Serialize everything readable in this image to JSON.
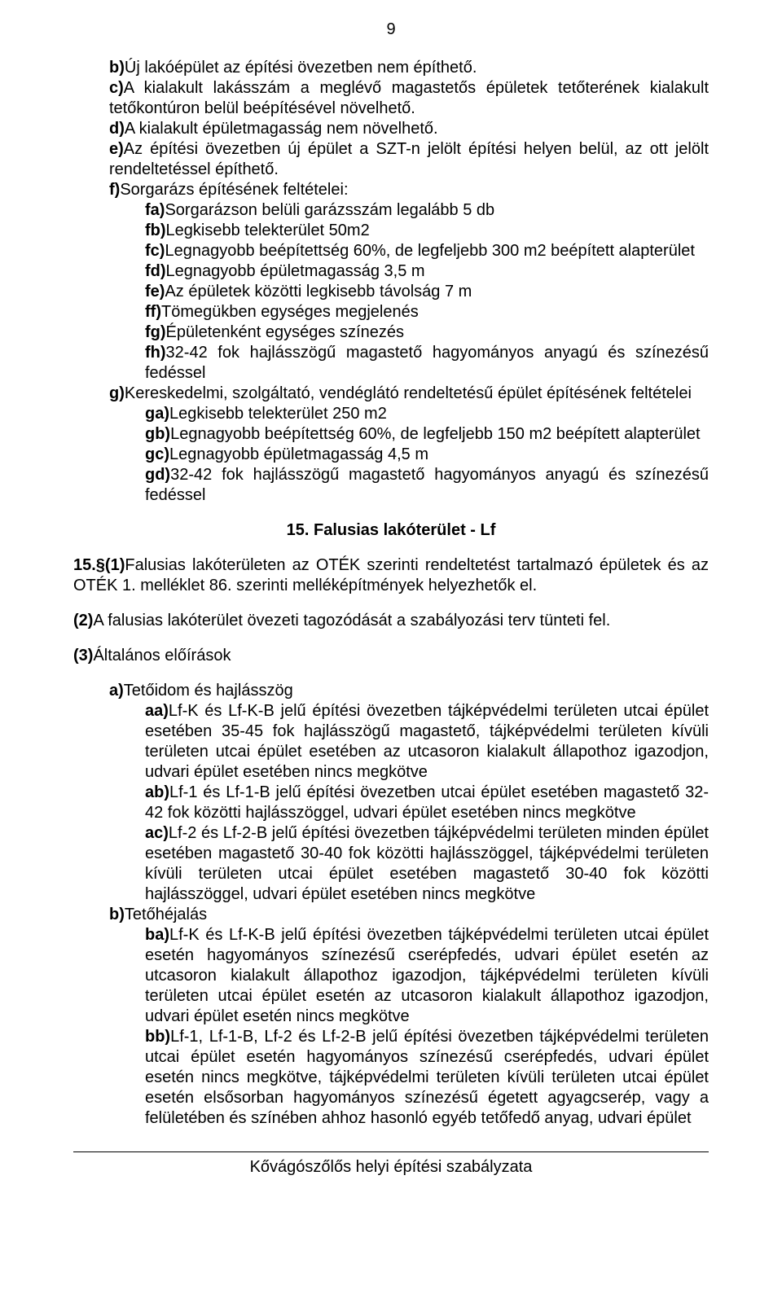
{
  "page_number": "9",
  "lines": {
    "b": "Új lakóépület az építési övezetben nem építhető.",
    "c": "A kialakult lakásszám a meglévő magastetős épületek tetőterének kialakult tetőkontúron belül beépítésével növelhető.",
    "d": "A kialakult épületmagasság nem növelhető.",
    "e": "Az építési övezetben új épület a SZT-n jelölt építési helyen belül, az ott jelölt rendeltetéssel építhető.",
    "f": "Sorgarázs építésének feltételei:",
    "fa": "Sorgarázson belüli garázsszám legalább 5 db",
    "fb": "Legkisebb telekterület 50m2",
    "fc": "Legnagyobb beépítettség 60%, de legfeljebb 300 m2 beépített alapterület",
    "fd": "Legnagyobb épületmagasság 3,5 m",
    "fe": "Az épületek közötti legkisebb távolság 7 m",
    "ff": "Tömegükben egységes megjelenés",
    "fg": "Épületenként egységes színezés",
    "fh": "32-42 fok hajlásszögű magastető hagyományos anyagú és színezésű fedéssel",
    "g": "Kereskedelmi, szolgáltató, vendéglátó rendeltetésű épület építésének feltételei",
    "ga": "Legkisebb telekterület 250 m2",
    "gb": "Legnagyobb beépítettség 60%, de legfeljebb 150 m2 beépített alapterület",
    "gc": "Legnagyobb épületmagasság 4,5 m",
    "gd": "32-42 fok hajlásszögű magastető hagyományos anyagú és színezésű fedéssel"
  },
  "section_title": "15. Falusias lakóterület - Lf",
  "p15_1": "Falusias lakóterületen az OTÉK szerinti rendeltetést tartalmazó épületek és az OTÉK 1. melléklet 86. szerinti melléképítmények helyezhetők el.",
  "p15_2": "A falusias lakóterület övezeti tagozódását a szabályozási terv tünteti fel.",
  "p15_3": "Általános előírások",
  "sec3": {
    "a": "Tetőidom és hajlásszög",
    "aa": "Lf-K és Lf-K-B jelű építési övezetben tájképvédelmi területen utcai épület esetében 35-45 fok hajlásszögű magastető, tájképvédelmi területen kívüli területen utcai épület esetében az utcasoron kialakult állapothoz igazodjon, udvari épület esetében nincs megkötve",
    "ab": "Lf-1 és Lf-1-B jelű építési övezetben utcai épület esetében magastető 32-42 fok közötti hajlásszöggel, udvari épület esetében nincs megkötve",
    "ac": "Lf-2 és Lf-2-B jelű építési övezetben tájképvédelmi területen minden épület esetében magastető 30-40 fok közötti hajlásszöggel, tájképvédelmi területen kívüli területen utcai épület esetében magastető 30-40 fok közötti hajlásszöggel, udvari épület esetében nincs megkötve",
    "b": "Tetőhéjalás",
    "ba": "Lf-K és Lf-K-B jelű építési övezetben tájképvédelmi területen utcai épület esetén hagyományos színezésű cserépfedés, udvari épület esetén az utcasoron kialakult állapothoz igazodjon, tájképvédelmi területen kívüli területen utcai épület esetén az utcasoron kialakult állapothoz igazodjon, udvari épület esetén nincs megkötve",
    "bb": "Lf-1, Lf-1-B, Lf-2 és Lf-2-B jelű építési övezetben tájképvédelmi területen utcai épület esetén hagyományos színezésű cserépfedés, udvari épület esetén nincs megkötve, tájképvédelmi területen kívüli területen utcai épület esetén elsősorban hagyományos színezésű égetett agyagcserép, vagy a felületében és színében ahhoz hasonló egyéb tetőfedő anyag, udvari épület"
  },
  "footer": "Kővágószőlős helyi építési szabályzata"
}
